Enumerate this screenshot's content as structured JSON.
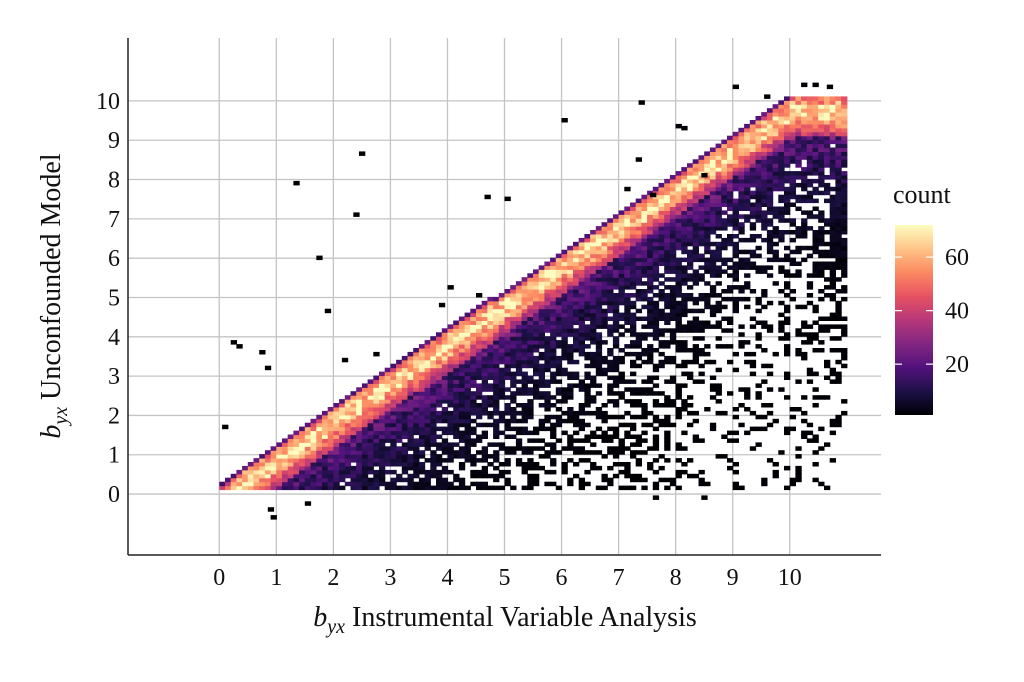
{
  "chart_data": {
    "type": "heatmap",
    "title": "",
    "xlabel": {
      "symbol": "b",
      "subscript": "yx",
      "text": " Instrumental Variable Analysis"
    },
    "ylabel": {
      "symbol": "b",
      "subscript": "yx",
      "text": " Unconfounded Model"
    },
    "xlim": [
      -1.6,
      11.6
    ],
    "ylim": [
      -1.55,
      11.6
    ],
    "x_ticks": [
      0,
      1,
      2,
      3,
      4,
      5,
      6,
      7,
      8,
      9,
      10
    ],
    "y_ticks": [
      0,
      1,
      2,
      3,
      4,
      5,
      6,
      7,
      8,
      9,
      10
    ],
    "grid": true,
    "bin_width": 0.1,
    "legend": {
      "title": "count",
      "ticks": [
        20,
        40,
        60
      ],
      "range": [
        1,
        72
      ],
      "placement": "right",
      "colormap": "magma",
      "colors": [
        "#000004",
        "#1d1147",
        "#51127c",
        "#822681",
        "#b73779",
        "#e75263",
        "#fc8961",
        "#fec488",
        "#fcfdbf"
      ]
    },
    "density": {
      "description_of_shape": "dense ridge along y = x from (0,0.2) to (10,10); lower triangle below the diagonal filled with decreasing counts toward lower-right",
      "ridge_start": [
        0.1,
        0.25
      ],
      "ridge_end": [
        10.0,
        10.0
      ],
      "peak_count": 72,
      "max_x": 10.9
    },
    "outliers": [
      [
        0.05,
        1.65
      ],
      [
        0.2,
        3.8
      ],
      [
        0.3,
        3.7
      ],
      [
        0.7,
        3.55
      ],
      [
        0.8,
        3.15
      ],
      [
        1.3,
        7.85
      ],
      [
        1.7,
        5.95
      ],
      [
        1.85,
        4.6
      ],
      [
        2.35,
        7.05
      ],
      [
        2.45,
        8.6
      ],
      [
        2.15,
        3.35
      ],
      [
        2.7,
        3.5
      ],
      [
        0.9,
        -0.65
      ],
      [
        0.85,
        -0.45
      ],
      [
        1.5,
        -0.3
      ],
      [
        4.0,
        5.2
      ],
      [
        3.85,
        4.75
      ],
      [
        4.5,
        5.0
      ],
      [
        4.65,
        7.5
      ],
      [
        5.0,
        7.45
      ],
      [
        6.0,
        9.45
      ],
      [
        7.35,
        9.9
      ],
      [
        7.3,
        8.45
      ],
      [
        7.1,
        7.7
      ],
      [
        7.55,
        7.55
      ],
      [
        8.0,
        9.3
      ],
      [
        8.1,
        9.25
      ],
      [
        8.45,
        8.05
      ],
      [
        9.0,
        10.3
      ],
      [
        8.45,
        -0.15
      ],
      [
        7.6,
        -0.15
      ],
      [
        9.55,
        10.05
      ],
      [
        10.2,
        10.35
      ],
      [
        10.4,
        10.35
      ],
      [
        10.65,
        10.3
      ]
    ]
  }
}
